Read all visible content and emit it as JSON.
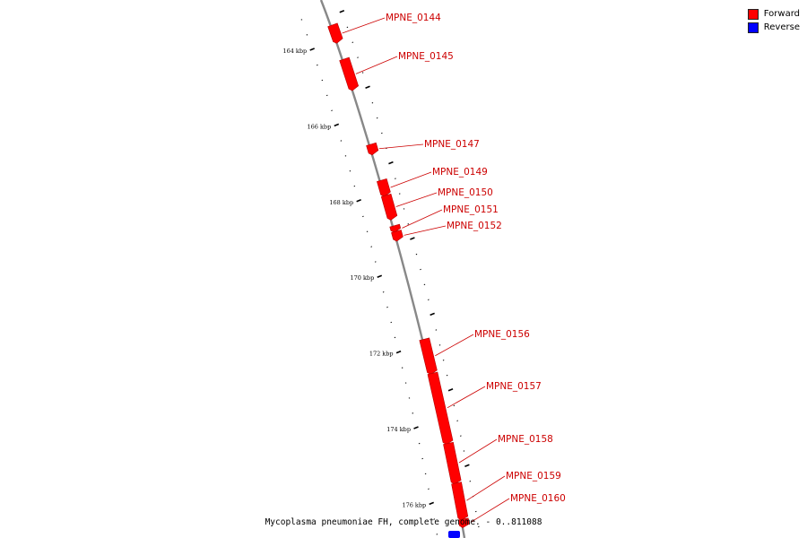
{
  "legend": {
    "forward_label": "Forward",
    "reverse_label": "Reverse",
    "forward_color": "#ff0000",
    "reverse_color": "#0000ff"
  },
  "caption": "Mycoplasma pneumoniae FH, complete genome. - 0..811088",
  "colors": {
    "backbone": "#888888",
    "gene_forward": "#ff0000",
    "gene_label": "#cc0000",
    "tick": "#000000"
  },
  "chart_data": {
    "type": "genome_map",
    "visible_range_kbp": [
      163,
      176.8
    ],
    "tick_unit": "kbp",
    "tick_labels": [
      {
        "kbp": 164,
        "label": "164 kbp"
      },
      {
        "kbp": 166,
        "label": "166 kbp"
      },
      {
        "kbp": 168,
        "label": "168 kbp"
      },
      {
        "kbp": 170,
        "label": "170 kbp"
      },
      {
        "kbp": 172,
        "label": "172 kbp"
      },
      {
        "kbp": 174,
        "label": "174 kbp"
      },
      {
        "kbp": 176,
        "label": "176 kbp"
      }
    ],
    "genes": [
      {
        "name": "MPNE_0144",
        "strand": "forward",
        "start_kbp": 163.35,
        "end_kbp": 163.75
      },
      {
        "name": "MPNE_0145",
        "strand": "forward",
        "start_kbp": 164.25,
        "end_kbp": 165.0
      },
      {
        "name": "MPNE_0147",
        "strand": "forward",
        "start_kbp": 166.5,
        "end_kbp": 166.7
      },
      {
        "name": "MPNE_0149",
        "strand": "forward",
        "start_kbp": 167.45,
        "end_kbp": 167.8
      },
      {
        "name": "MPNE_0150",
        "strand": "forward",
        "start_kbp": 167.85,
        "end_kbp": 168.42
      },
      {
        "name": "MPNE_0151",
        "strand": "forward",
        "start_kbp": 168.65,
        "end_kbp": 168.75
      },
      {
        "name": "MPNE_0152",
        "strand": "forward",
        "start_kbp": 168.8,
        "end_kbp": 168.98
      },
      {
        "name": "MPNE_0156",
        "strand": "forward",
        "start_kbp": 171.65,
        "end_kbp": 172.5
      },
      {
        "name": "MPNE_0157",
        "strand": "forward",
        "start_kbp": 172.55,
        "end_kbp": 174.35
      },
      {
        "name": "MPNE_0158",
        "strand": "forward",
        "start_kbp": 174.4,
        "end_kbp": 175.4
      },
      {
        "name": "MPNE_0159",
        "strand": "forward",
        "start_kbp": 175.45,
        "end_kbp": 176.35
      },
      {
        "name": "MPNE_0160",
        "strand": "forward",
        "start_kbp": 176.4,
        "end_kbp": 176.55
      }
    ]
  }
}
